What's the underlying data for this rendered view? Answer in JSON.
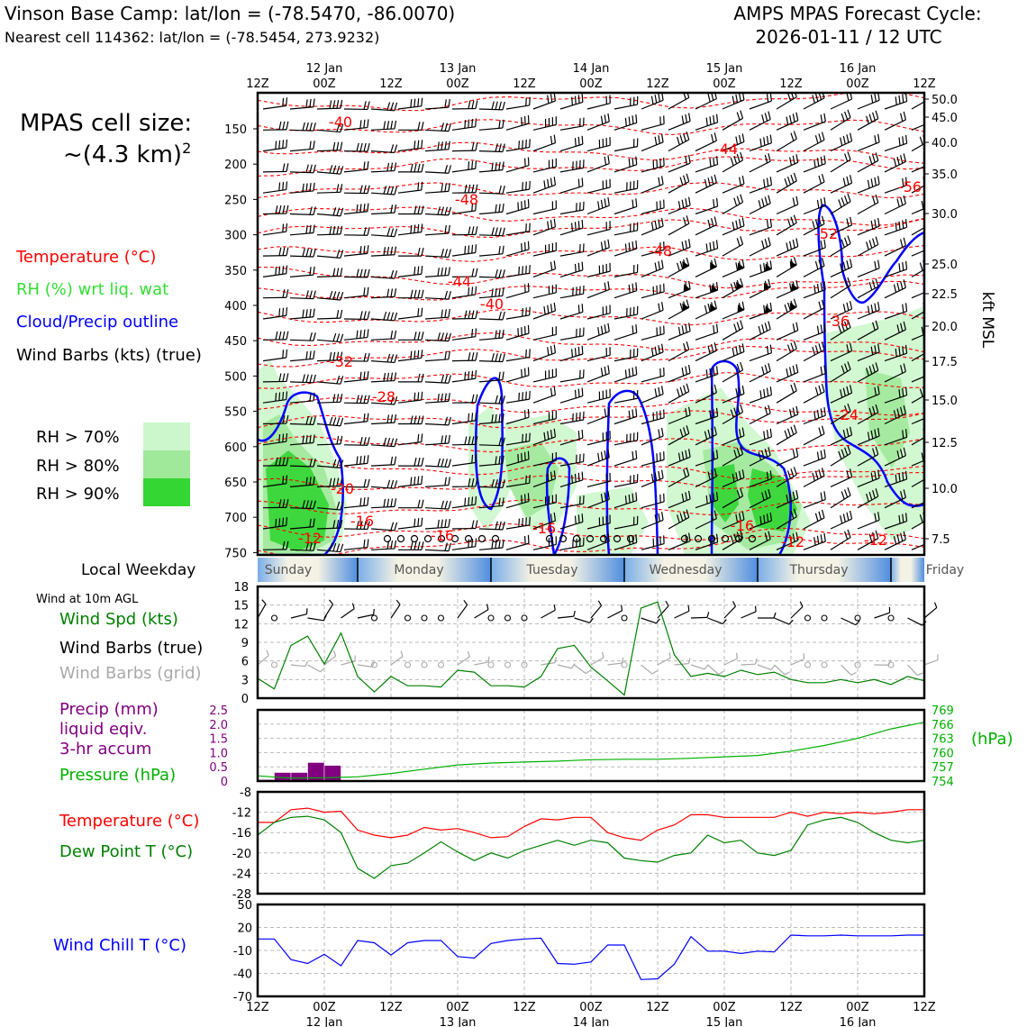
{
  "header": {
    "left_title": "Vinson Base Camp: lat/lon = (-78.5470, -86.0070)",
    "left_subtitle": "Nearest cell 114362: lat/lon = (-78.5454, 273.9232)",
    "right_title": "AMPS MPAS Forecast Cycle:",
    "right_subtitle": "2026-01-11 / 12 UTC"
  },
  "cell_size": {
    "line1": "MPAS cell size:",
    "line2": "~(4.3 km)",
    "exponent": "2"
  },
  "legend_upper": {
    "temperature": "Temperature (°C)",
    "rh": "RH (%) wrt liq. wat",
    "cloud": "Cloud/Precip outline",
    "wind": "Wind Barbs (kts) (true)",
    "rh70": "RH > 70%",
    "rh80": "RH > 80%",
    "rh90": "RH > 90%"
  },
  "legend_lower": {
    "weekday_label": "Local Weekday",
    "wind10m": "Wind at 10m AGL",
    "wind_spd": "Wind Spd (kts)",
    "wind_barbs_true": "Wind Barbs (true)",
    "wind_barbs_grid": "Wind Barbs (grid)",
    "precip1": "Precip (mm)",
    "precip2": "liquid eqiv.",
    "precip3": "3-hr accum",
    "pressure": "Pressure (hPa)",
    "pressure_unit": "(hPa)",
    "temp": "Temperature (°C)",
    "dewpoint": "Dew Point T (°C)",
    "windchill": "Wind Chill T (°C)"
  },
  "colors": {
    "temperature": "#ff0000",
    "rh_label": "#33dd33",
    "cloud": "#0000ff",
    "rh70": "#ccf7cc",
    "rh80": "#a0e89a",
    "rh90": "#33d633",
    "wind_spd": "#008000",
    "precip": "#800080",
    "pressure": "#00b000",
    "dewpoint": "#008000",
    "windchill": "#0000ff",
    "grid_barb": "#aaaaaa"
  },
  "time_axis": {
    "ticks": [
      "12Z",
      "00Z",
      "12Z",
      "00Z",
      "12Z",
      "00Z",
      "12Z",
      "00Z",
      "12Z",
      "00Z",
      "12Z"
    ],
    "dates": [
      "12 Jan",
      "13 Jan",
      "14 Jan",
      "15 Jan",
      "16 Jan"
    ],
    "start_hour": 12,
    "end_hour": 132
  },
  "weekdays": [
    {
      "name": "Sunday"
    },
    {
      "name": "Monday"
    },
    {
      "name": "Tuesday"
    },
    {
      "name": "Wednesday"
    },
    {
      "name": "Thursday"
    },
    {
      "name": "Friday"
    }
  ],
  "chart_data": [
    {
      "type": "heatmap",
      "name": "cross-section",
      "ylabel_right": "kft MSL",
      "pressure_ticks": [
        "150",
        "200",
        "250",
        "300",
        "350",
        "400",
        "450",
        "500",
        "550",
        "600",
        "650",
        "700",
        "750"
      ],
      "kft_ticks": [
        "50.0",
        "45.0",
        "40.0",
        "35.0",
        "30.0",
        "25.0",
        "22.5",
        "20.0",
        "17.5",
        "15.0",
        "12.5",
        "10.0",
        "7.5"
      ],
      "temp_contour_labels": [
        "-40",
        "-44",
        "-56",
        "-48",
        "-52",
        "-48",
        "-44",
        "-40",
        "-36",
        "-32",
        "-28",
        "-24",
        "-20",
        "-16",
        "-16",
        "-16",
        "-16",
        "-12",
        "-12",
        "-12"
      ]
    },
    {
      "type": "line",
      "name": "wind speed",
      "y_ticks": [
        "0",
        "3",
        "6",
        "9",
        "12",
        "15",
        "18"
      ],
      "ylim": [
        0,
        18
      ],
      "x_hours": [
        0,
        3,
        6,
        9,
        12,
        15,
        18,
        21,
        24,
        27,
        30,
        33,
        36,
        39,
        42,
        45,
        48,
        51,
        54,
        57,
        60,
        63,
        66,
        69,
        72,
        75,
        78,
        81,
        84,
        87,
        90,
        93,
        96,
        99,
        102,
        105,
        108,
        111,
        114,
        117,
        120
      ],
      "values": [
        3.2,
        1.5,
        8.5,
        10.0,
        5.5,
        10.5,
        3.5,
        1.0,
        3.5,
        2.0,
        2.0,
        1.8,
        4.5,
        4.2,
        2.0,
        2.0,
        1.8,
        3.5,
        8.0,
        8.5,
        5.0,
        2.8,
        0.5,
        14.5,
        15.5,
        7.0,
        3.5,
        4.0,
        3.5,
        4.5,
        3.8,
        4.2,
        3.0,
        2.5,
        2.5,
        3.0,
        2.5,
        3.0,
        2.2,
        3.5,
        2.8
      ]
    },
    {
      "type": "bar",
      "name": "precipitation",
      "y_ticks": [
        "0",
        "0.5",
        "1.0",
        "1.5",
        "2.0",
        "2.5"
      ],
      "ylim": [
        0,
        2.5
      ],
      "bars": [
        {
          "start": 0,
          "end": 3,
          "value": 0.05
        },
        {
          "start": 3,
          "end": 6,
          "value": 0.3
        },
        {
          "start": 6,
          "end": 9,
          "value": 0.3
        },
        {
          "start": 9,
          "end": 12,
          "value": 0.65
        },
        {
          "start": 12,
          "end": 15,
          "value": 0.55
        }
      ]
    },
    {
      "type": "line",
      "name": "pressure",
      "y_ticks_right": [
        "754",
        "757",
        "760",
        "763",
        "766",
        "769"
      ],
      "ylim": [
        754,
        769
      ],
      "x_hours": [
        0,
        6,
        12,
        18,
        24,
        30,
        36,
        42,
        48,
        54,
        60,
        66,
        72,
        78,
        84,
        90,
        96,
        102,
        108,
        114,
        120
      ],
      "values": [
        755.1,
        754.6,
        754.7,
        754.9,
        755.6,
        756.5,
        757.4,
        757.8,
        758.0,
        758.2,
        758.5,
        758.6,
        758.6,
        758.8,
        759.1,
        759.4,
        760.3,
        761.5,
        763.0,
        765.0,
        766.4
      ]
    },
    {
      "type": "line",
      "name": "temperature and dew point",
      "y_ticks": [
        "-8",
        "-12",
        "-16",
        "-20",
        "-24",
        "-28"
      ],
      "ylim": [
        -28,
        -8
      ],
      "x_hours": [
        0,
        3,
        6,
        9,
        12,
        15,
        18,
        21,
        24,
        27,
        30,
        33,
        36,
        39,
        42,
        45,
        48,
        51,
        54,
        57,
        60,
        63,
        66,
        69,
        72,
        75,
        78,
        81,
        84,
        87,
        90,
        93,
        96,
        99,
        102,
        105,
        108,
        111,
        114,
        117,
        120
      ],
      "series": [
        {
          "values": [
            -14.0,
            -14.0,
            -11.5,
            -11.2,
            -12.0,
            -11.8,
            -15.5,
            -16.5,
            -17.0,
            -16.5,
            -15.0,
            -15.5,
            -15.2,
            -16.0,
            -17.0,
            -16.8,
            -14.8,
            -13.3,
            -13.5,
            -13.0,
            -13.0,
            -16.0,
            -17.0,
            -17.5,
            -15.5,
            -14.5,
            -12.5,
            -12.5,
            -13.0,
            -13.0,
            -13.0,
            -13.0,
            -12.0,
            -12.8,
            -12.0,
            -12.3,
            -12.0,
            -12.3,
            -12.0,
            -11.5,
            -11.5
          ]
        },
        {
          "values": [
            -16.5,
            -14.0,
            -13.0,
            -12.8,
            -13.5,
            -16.0,
            -23.0,
            -25.0,
            -22.5,
            -22.0,
            -20.0,
            -17.8,
            -19.8,
            -21.5,
            -20.0,
            -21.0,
            -19.5,
            -18.5,
            -17.5,
            -18.5,
            -17.5,
            -18.0,
            -21.0,
            -21.5,
            -21.8,
            -20.5,
            -20.0,
            -16.5,
            -18.0,
            -17.5,
            -20.0,
            -20.5,
            -19.5,
            -14.5,
            -13.5,
            -13.0,
            -14.0,
            -16.0,
            -17.5,
            -18.0,
            -17.5
          ]
        }
      ]
    },
    {
      "type": "line",
      "name": "wind chill",
      "y_ticks": [
        "50",
        "20",
        "-10",
        "-40",
        "-70"
      ],
      "ylim": [
        -70,
        50
      ],
      "x_hours": [
        0,
        3,
        6,
        9,
        12,
        15,
        18,
        21,
        24,
        27,
        30,
        33,
        36,
        39,
        42,
        45,
        48,
        51,
        54,
        57,
        60,
        63,
        66,
        69,
        72,
        75,
        78,
        81,
        84,
        87,
        90,
        93,
        96,
        99,
        102,
        105,
        108,
        111,
        114,
        117,
        120
      ],
      "values": [
        5,
        5,
        -22,
        -27,
        -15,
        -30,
        3,
        0,
        -16,
        0,
        3,
        3,
        -18,
        -20,
        -1,
        3,
        5,
        6,
        -27,
        -28,
        -25,
        -3,
        -3,
        -48,
        -47,
        -28,
        8,
        -11,
        -11,
        -14,
        -11,
        -12,
        10,
        9,
        9,
        10,
        9,
        9,
        9,
        10,
        10
      ]
    }
  ]
}
